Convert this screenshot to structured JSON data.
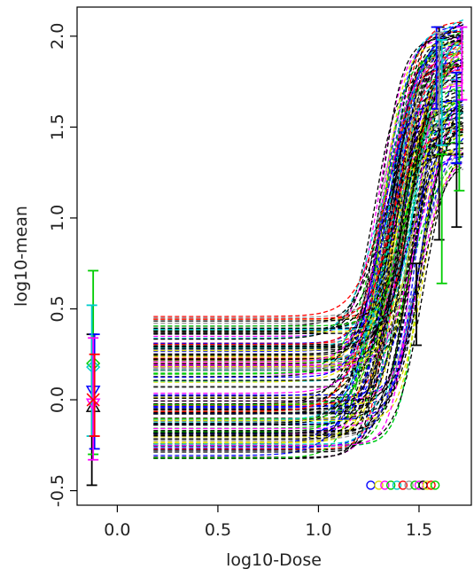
{
  "chart_data": {
    "type": "line",
    "xlabel": "log10-Dose",
    "ylabel": "log10-mean",
    "xlim": [
      -0.2,
      1.76
    ],
    "ylim": [
      -0.58,
      2.16
    ],
    "x_ticks": [
      0.0,
      0.5,
      1.0,
      1.5
    ],
    "x_tick_labels": [
      "0.0",
      "0.5",
      "1.0",
      "1.5"
    ],
    "y_ticks": [
      -0.5,
      0.0,
      0.5,
      1.0,
      1.5,
      2.0
    ],
    "y_tick_labels": [
      "-0.5",
      "0.0",
      "0.5",
      "1.0",
      "1.5",
      "2.0"
    ],
    "grid": false,
    "legend": "none",
    "palette": [
      "#000000",
      "#ff0000",
      "#00cc00",
      "#0000ff",
      "#00cccc",
      "#ff00ff",
      "#dddd00",
      "#999999"
    ],
    "curve_family": {
      "count": 150,
      "x_start": 0.18,
      "x_end": 1.72,
      "baseline_range": [
        -0.33,
        0.46
      ],
      "top_range": [
        1.3,
        2.12
      ],
      "midpoint_range": [
        1.28,
        1.52
      ],
      "slope_range": [
        11,
        22
      ],
      "line_style": "dashed"
    },
    "control_error_bars": [
      {
        "x": -0.12,
        "mean": -0.04,
        "low": -0.47,
        "high": 0.36,
        "color": "#000000",
        "marker": "triangle-up"
      },
      {
        "x": -0.12,
        "mean": 0.2,
        "low": -0.3,
        "high": 0.71,
        "color": "#00cc00",
        "marker": "diamond"
      },
      {
        "x": -0.12,
        "mean": 0.05,
        "low": -0.27,
        "high": 0.36,
        "color": "#0000ff",
        "marker": "triangle-down"
      },
      {
        "x": -0.12,
        "mean": 0.18,
        "low": -0.2,
        "high": 0.52,
        "color": "#00cccc",
        "marker": "diamond"
      },
      {
        "x": -0.12,
        "mean": -0.02,
        "low": -0.33,
        "high": 0.34,
        "color": "#ff00ff",
        "marker": "triangle-down"
      },
      {
        "x": -0.12,
        "mean": 0.0,
        "low": -0.2,
        "high": 0.25,
        "color": "#ff0000",
        "marker": "cross"
      }
    ],
    "dose_error_bars": [
      {
        "x": 1.5,
        "mean": 0.52,
        "low": 0.3,
        "high": 0.75,
        "color": "#000000"
      },
      {
        "x": 1.6,
        "mean": 1.15,
        "low": 0.88,
        "high": 2.05,
        "color": "#000000"
      },
      {
        "x": 1.6,
        "mean": 1.1,
        "low": 0.64,
        "high": 1.35,
        "color": "#00cc00"
      },
      {
        "x": 1.6,
        "mean": 1.9,
        "low": 1.6,
        "high": 2.05,
        "color": "#0000ff"
      },
      {
        "x": 1.6,
        "mean": 1.85,
        "low": 1.5,
        "high": 2.02,
        "color": "#999999"
      },
      {
        "x": 1.6,
        "mean": 1.75,
        "low": 1.4,
        "high": 1.98,
        "color": "#00cccc"
      },
      {
        "x": 1.7,
        "mean": 1.35,
        "low": 0.95,
        "high": 1.75,
        "color": "#000000"
      },
      {
        "x": 1.7,
        "mean": 1.45,
        "low": 1.15,
        "high": 1.7,
        "color": "#00cc00"
      },
      {
        "x": 1.7,
        "mean": 1.9,
        "low": 1.65,
        "high": 2.05,
        "color": "#ff00ff"
      },
      {
        "x": 1.7,
        "mean": 1.6,
        "low": 1.3,
        "high": 1.8,
        "color": "#0000ff"
      }
    ],
    "rug_points": {
      "y": -0.47,
      "x": [
        1.26,
        1.3,
        1.33,
        1.36,
        1.39,
        1.42,
        1.45,
        1.48,
        1.5,
        1.52,
        1.54,
        1.56,
        1.58
      ],
      "colors": [
        "#0000ff",
        "#dddd00",
        "#ff00ff",
        "#00cc00",
        "#00cccc",
        "#ff0000",
        "#999999",
        "#00cc00",
        "#ff00ff",
        "#000000",
        "#dddd00",
        "#ff0000",
        "#00cc00"
      ]
    }
  }
}
